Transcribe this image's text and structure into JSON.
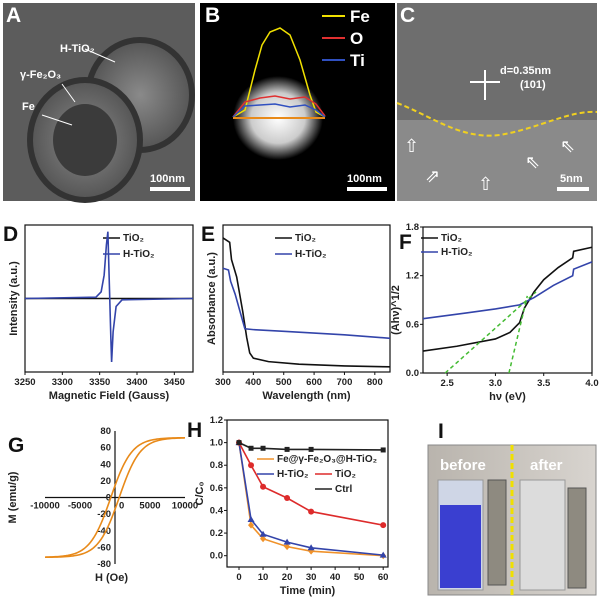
{
  "panels": {
    "A": {
      "letter": "A",
      "labels": [
        "H-TiO₂",
        "γ-Fe₂O₃",
        "Fe"
      ],
      "scale": "100nm"
    },
    "B": {
      "letter": "B",
      "legend": [
        "Fe",
        "O",
        "Ti"
      ],
      "colors": [
        "#f0e000",
        "#e03030",
        "#3050c0"
      ],
      "scale": "100nm"
    },
    "C": {
      "letter": "C",
      "d_label": "d=0.35nm",
      "plane": "(101)",
      "scale": "5nm"
    },
    "I": {
      "letter": "I",
      "before": "before",
      "after": "after"
    }
  },
  "chart_data": [
    {
      "id": "D",
      "letter": "D",
      "type": "line",
      "xlabel": "Magnetic Field (Gauss)",
      "ylabel": "Intensity (a.u.)",
      "xlim": [
        3250,
        3475
      ],
      "ylim": [
        -1.1,
        1.1
      ],
      "xticks": [
        3250,
        3300,
        3350,
        3400,
        3450
      ],
      "yticks": [],
      "series": [
        {
          "name": "TiO₂",
          "color": "#111111",
          "x": [
            3250,
            3350,
            3390,
            3475
          ],
          "y": [
            0,
            0,
            0,
            0
          ]
        },
        {
          "name": "H-TiO₂",
          "color": "#3344aa",
          "x": [
            3250,
            3345,
            3352,
            3356,
            3359,
            3361,
            3363,
            3365,
            3366,
            3368,
            3372,
            3380,
            3475
          ],
          "y": [
            0,
            0.02,
            0.1,
            0.35,
            0.8,
            1.0,
            0.2,
            -0.6,
            -0.95,
            -0.5,
            -0.12,
            -0.02,
            0
          ]
        }
      ],
      "legend": "top-right"
    },
    {
      "id": "E",
      "letter": "E",
      "type": "line",
      "xlabel": "Wavelength (nm)",
      "ylabel": "Absorbance (a.u.)",
      "xlim": [
        300,
        850
      ],
      "ylim": [
        0,
        1.7
      ],
      "xticks": [
        300,
        400,
        500,
        600,
        700,
        800
      ],
      "yticks": [],
      "series": [
        {
          "name": "TiO₂",
          "color": "#111111",
          "x": [
            300,
            322,
            328,
            345,
            365,
            378,
            388,
            400,
            450,
            550,
            700,
            850
          ],
          "y": [
            1.55,
            1.5,
            1.3,
            1.1,
            0.7,
            0.4,
            0.22,
            0.16,
            0.12,
            0.09,
            0.07,
            0.06
          ]
        },
        {
          "name": "H-TiO₂",
          "color": "#3344aa",
          "x": [
            300,
            318,
            325,
            340,
            360,
            372,
            400,
            500,
            600,
            700,
            850
          ],
          "y": [
            1.2,
            1.18,
            1.05,
            0.9,
            0.65,
            0.5,
            0.49,
            0.47,
            0.45,
            0.43,
            0.39
          ]
        }
      ],
      "legend": "top-right"
    },
    {
      "id": "F",
      "letter": "F",
      "type": "line",
      "xlabel": "hν (eV)",
      "ylabel": "(Ahν)^1/2",
      "xlim": [
        2.25,
        4.0
      ],
      "ylim": [
        0,
        1.8
      ],
      "xticks": [
        2.5,
        3.0,
        3.5,
        4.0
      ],
      "yticks": [
        0.0,
        0.6,
        1.2,
        1.8
      ],
      "series": [
        {
          "name": "TiO₂",
          "color": "#111111",
          "x": [
            2.25,
            2.6,
            3.0,
            3.15,
            3.25,
            3.3,
            3.4,
            3.5,
            3.65,
            3.8,
            3.81,
            4.0
          ],
          "y": [
            0.27,
            0.33,
            0.42,
            0.5,
            0.62,
            0.8,
            1.0,
            1.15,
            1.3,
            1.42,
            1.5,
            1.55
          ]
        },
        {
          "name": "H-TiO₂",
          "color": "#3344aa",
          "x": [
            2.25,
            2.7,
            3.0,
            3.25,
            3.4,
            3.6,
            3.8,
            3.81,
            4.0
          ],
          "y": [
            0.67,
            0.74,
            0.79,
            0.84,
            0.93,
            1.08,
            1.2,
            1.28,
            1.37
          ]
        },
        {
          "color": "#44bb33",
          "dashed": true,
          "x": [
            2.48,
            3.42
          ],
          "y": [
            0,
            1.0
          ]
        },
        {
          "color": "#44bb33",
          "dashed": true,
          "x": [
            3.14,
            3.33
          ],
          "y": [
            0,
            0.95
          ]
        }
      ],
      "legend": "top-left"
    },
    {
      "id": "G",
      "letter": "G",
      "type": "line",
      "xlabel": "H (Oe)",
      "ylabel": "M (emu/g)",
      "xlim": [
        -10000,
        10000
      ],
      "ylim": [
        -80,
        80
      ],
      "xticks": [
        -10000,
        -5000,
        0,
        5000,
        10000
      ],
      "yticks": [
        -80,
        -60,
        -40,
        -20,
        0,
        20,
        40,
        60,
        80
      ],
      "series": [
        {
          "color": "#e88a1a",
          "saturation": 72
        }
      ]
    },
    {
      "id": "H",
      "letter": "H",
      "type": "line",
      "xlabel": "Time (min)",
      "ylabel": "C/C₀",
      "xlim": [
        -5,
        62
      ],
      "ylim": [
        -0.1,
        1.2
      ],
      "xticks": [
        0,
        10,
        20,
        30,
        40,
        50,
        60
      ],
      "yticks": [
        0.0,
        0.2,
        0.4,
        0.6,
        0.8,
        1.0,
        1.2
      ],
      "x": [
        0,
        5,
        10,
        20,
        30,
        60
      ],
      "series": [
        {
          "name": "Fe@γ-Fe₂O₃@H-TiO₂",
          "color": "#f0922a",
          "marker": "diamond",
          "y": [
            1,
            0.27,
            0.15,
            0.08,
            0.04,
            0.0
          ]
        },
        {
          "name": "H-TiO₂",
          "color": "#3344aa",
          "marker": "triangle",
          "y": [
            1,
            0.32,
            0.19,
            0.12,
            0.07,
            0.005
          ]
        },
        {
          "name": "TiO₂",
          "color": "#dd2b2b",
          "marker": "circle",
          "y": [
            1,
            0.8,
            0.61,
            0.51,
            0.39,
            0.27
          ]
        },
        {
          "name": "Ctrl",
          "color": "#222222",
          "marker": "square",
          "y": [
            1,
            0.95,
            0.95,
            0.94,
            0.94,
            0.935
          ]
        }
      ],
      "legend": "right"
    }
  ]
}
